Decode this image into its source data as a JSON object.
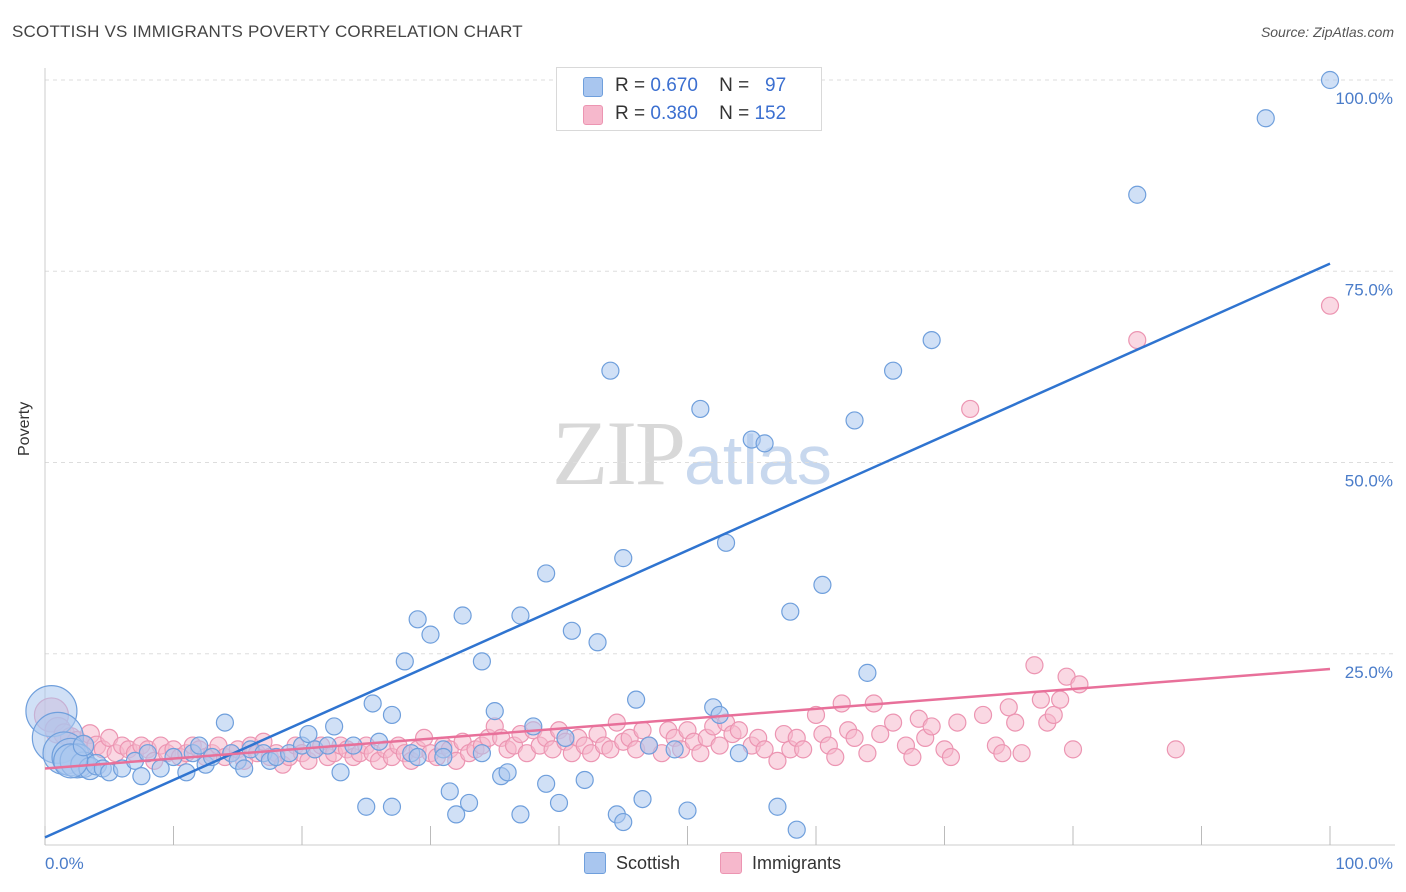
{
  "header": {
    "title": "SCOTTISH VS IMMIGRANTS POVERTY CORRELATION CHART",
    "source": "Source: ZipAtlas.com"
  },
  "watermark": {
    "zip": "ZIP",
    "atlas": "atlas"
  },
  "legend_top": {
    "rows": [
      {
        "r_label": "R =",
        "r_value": "0.670",
        "n_label": "N =",
        "n_value": "97"
      },
      {
        "r_label": "R =",
        "r_value": "0.380",
        "n_label": "N =",
        "n_value": "152"
      }
    ]
  },
  "legend_bottom": {
    "items": [
      "Scottish",
      "Immigrants"
    ]
  },
  "colors": {
    "scottish_fill": "#a9c6ef",
    "scottish_stroke": "#6f9fdc",
    "scottish_line": "#2f74d0",
    "immigrants_fill": "#f6b8cc",
    "immigrants_stroke": "#ec95b2",
    "immigrants_line": "#e8709a",
    "grid": "#dddddd",
    "axis_text": "#4a7cc9"
  },
  "chart_data": {
    "type": "scatter",
    "title": "SCOTTISH VS IMMIGRANTS POVERTY CORRELATION CHART",
    "xlabel": "",
    "ylabel": "Poverty",
    "xlim": [
      0,
      100
    ],
    "ylim": [
      0,
      100
    ],
    "x_tick_labels": [
      "0.0%",
      "100.0%"
    ],
    "y_tick_labels": [
      "25.0%",
      "50.0%",
      "75.0%",
      "100.0%"
    ],
    "y_ticks": [
      25,
      50,
      75,
      100
    ],
    "grid": true,
    "legend_position": "top-center",
    "series": [
      {
        "name": "Scottish",
        "R": 0.67,
        "N": 97,
        "trend": [
          [
            0,
            1.0
          ],
          [
            100,
            76.0
          ]
        ],
        "points": [
          [
            0.5,
            17.5,
            3
          ],
          [
            1,
            14,
            3
          ],
          [
            1.5,
            12,
            2.5
          ],
          [
            2,
            11.5,
            2.2
          ],
          [
            2.5,
            11,
            2
          ],
          [
            3,
            10.5,
            1.5
          ],
          [
            3.5,
            10,
            1.3
          ],
          [
            4,
            10.5,
            1.2
          ],
          [
            4.5,
            10,
            1
          ],
          [
            5,
            9.5,
            1
          ],
          [
            6,
            10,
            1
          ],
          [
            7,
            11,
            1
          ],
          [
            7.5,
            9,
            1
          ],
          [
            8,
            12,
            1
          ],
          [
            9,
            10,
            1
          ],
          [
            10,
            11.5,
            1
          ],
          [
            11,
            9.5,
            1
          ],
          [
            11.5,
            12,
            1
          ],
          [
            12,
            13,
            1
          ],
          [
            12.5,
            10.5,
            1
          ],
          [
            13,
            11.5,
            1
          ],
          [
            14,
            16,
            1
          ],
          [
            14.5,
            12,
            1
          ],
          [
            15,
            11,
            1
          ],
          [
            15.5,
            10,
            1
          ],
          [
            16,
            12.5,
            1
          ],
          [
            17,
            12,
            1
          ],
          [
            17.5,
            11,
            1
          ],
          [
            18,
            11.5,
            1
          ],
          [
            19,
            12,
            1
          ],
          [
            20,
            13,
            1
          ],
          [
            20.5,
            14.5,
            1
          ],
          [
            21,
            12.5,
            1
          ],
          [
            22,
            13,
            1
          ],
          [
            22.5,
            15.5,
            1
          ],
          [
            23,
            9.5,
            1
          ],
          [
            24,
            13,
            1
          ],
          [
            25,
            5,
            1
          ],
          [
            25.5,
            18.5,
            1
          ],
          [
            26,
            13.5,
            1
          ],
          [
            27,
            17,
            1
          ],
          [
            27,
            5,
            1
          ],
          [
            28,
            24,
            1
          ],
          [
            28.5,
            12,
            1
          ],
          [
            29,
            11.5,
            1
          ],
          [
            29,
            29.5,
            1
          ],
          [
            30,
            27.5,
            1
          ],
          [
            31,
            12.5,
            1
          ],
          [
            31,
            11.5,
            1
          ],
          [
            31.5,
            7,
            1
          ],
          [
            32,
            4,
            1
          ],
          [
            32.5,
            30,
            1
          ],
          [
            33,
            5.5,
            1
          ],
          [
            34,
            24,
            1
          ],
          [
            34,
            12,
            1
          ],
          [
            35,
            17.5,
            1
          ],
          [
            35.5,
            9,
            1
          ],
          [
            36,
            9.5,
            1
          ],
          [
            37,
            4,
            1
          ],
          [
            37,
            30,
            1
          ],
          [
            38,
            15.5,
            1
          ],
          [
            39,
            35.5,
            1
          ],
          [
            39,
            8,
            1
          ],
          [
            40,
            5.5,
            1
          ],
          [
            40.5,
            14,
            1
          ],
          [
            41,
            28,
            1
          ],
          [
            42,
            8.5,
            1
          ],
          [
            43,
            26.5,
            1
          ],
          [
            44,
            62,
            1
          ],
          [
            44.5,
            4,
            1
          ],
          [
            45,
            3,
            1
          ],
          [
            45,
            37.5,
            1
          ],
          [
            46,
            19,
            1
          ],
          [
            46.5,
            6,
            1
          ],
          [
            47,
            13,
            1
          ],
          [
            49,
            12.5,
            1
          ],
          [
            50,
            4.5,
            1
          ],
          [
            51,
            57,
            1
          ],
          [
            52,
            18,
            1
          ],
          [
            52.5,
            17,
            1
          ],
          [
            53,
            39.5,
            1
          ],
          [
            54,
            12,
            1
          ],
          [
            55,
            53,
            1
          ],
          [
            56,
            52.5,
            1
          ],
          [
            57,
            5,
            1
          ],
          [
            58,
            30.5,
            1
          ],
          [
            58.5,
            2,
            1
          ],
          [
            60.5,
            34,
            1
          ],
          [
            63,
            55.5,
            1
          ],
          [
            64,
            22.5,
            1
          ],
          [
            66,
            62,
            1
          ],
          [
            69,
            66,
            1
          ],
          [
            85,
            85,
            1
          ],
          [
            95,
            95,
            1
          ],
          [
            100,
            100,
            1
          ],
          [
            2,
            11,
            2
          ],
          [
            3,
            13,
            1.2
          ]
        ]
      },
      {
        "name": "Immigrants",
        "R": 0.38,
        "N": 152,
        "trend": [
          [
            0,
            10.0
          ],
          [
            100,
            23.0
          ]
        ],
        "points": [
          [
            0.5,
            17,
            2
          ],
          [
            1,
            15,
            1.5
          ],
          [
            1.5,
            14.5,
            1.2
          ],
          [
            2,
            14,
            1.2
          ],
          [
            2.5,
            13.5,
            1.2
          ],
          [
            3,
            13,
            1.1
          ],
          [
            3.5,
            14.5,
            1.1
          ],
          [
            4,
            13,
            1.1
          ],
          [
            4.5,
            12.5,
            1
          ],
          [
            5,
            14,
            1
          ],
          [
            5.5,
            12,
            1
          ],
          [
            6,
            13,
            1
          ],
          [
            6.5,
            12.5,
            1
          ],
          [
            7,
            12,
            1
          ],
          [
            7.5,
            13,
            1
          ],
          [
            8,
            12.5,
            1
          ],
          [
            8.5,
            11,
            1
          ],
          [
            9,
            13,
            1
          ],
          [
            9.5,
            12,
            1
          ],
          [
            10,
            12.5,
            1
          ],
          [
            10.5,
            11.5,
            1
          ],
          [
            11,
            12,
            1
          ],
          [
            11.5,
            13,
            1
          ],
          [
            12,
            12.5,
            1
          ],
          [
            12.5,
            11.5,
            1
          ],
          [
            13,
            12,
            1
          ],
          [
            13.5,
            13,
            1
          ],
          [
            14,
            11.5,
            1
          ],
          [
            14.5,
            12,
            1
          ],
          [
            15,
            12.5,
            1
          ],
          [
            15.5,
            11,
            1
          ],
          [
            16,
            13,
            1
          ],
          [
            16.5,
            12,
            1
          ],
          [
            17,
            13.5,
            1
          ],
          [
            17.5,
            11.5,
            1
          ],
          [
            18,
            12,
            1
          ],
          [
            18.5,
            10.5,
            1
          ],
          [
            19,
            11.5,
            1
          ],
          [
            19.5,
            13,
            1
          ],
          [
            20,
            12,
            1
          ],
          [
            20.5,
            11,
            1
          ],
          [
            21,
            12.5,
            1
          ],
          [
            21.5,
            13,
            1
          ],
          [
            22,
            11.5,
            1
          ],
          [
            22.5,
            12,
            1
          ],
          [
            23,
            13,
            1
          ],
          [
            23.5,
            12.5,
            1
          ],
          [
            24,
            11.5,
            1
          ],
          [
            24.5,
            12,
            1
          ],
          [
            25,
            13,
            1
          ],
          [
            25.5,
            12,
            1
          ],
          [
            26,
            11,
            1
          ],
          [
            26.5,
            12.5,
            1
          ],
          [
            27,
            11.5,
            1
          ],
          [
            27.5,
            13,
            1
          ],
          [
            28,
            12,
            1
          ],
          [
            28.5,
            11,
            1
          ],
          [
            29,
            12.5,
            1
          ],
          [
            29.5,
            14,
            1
          ],
          [
            30,
            12,
            1
          ],
          [
            30.5,
            11.5,
            1
          ],
          [
            31,
            13,
            1
          ],
          [
            31.5,
            12.5,
            1
          ],
          [
            32,
            11,
            1
          ],
          [
            32.5,
            13.5,
            1
          ],
          [
            33,
            12,
            1
          ],
          [
            33.5,
            12.5,
            1
          ],
          [
            34,
            13,
            1
          ],
          [
            34.5,
            14,
            1
          ],
          [
            35,
            15.5,
            1
          ],
          [
            35.5,
            14,
            1
          ],
          [
            36,
            12.5,
            1
          ],
          [
            36.5,
            13,
            1
          ],
          [
            37,
            14.5,
            1
          ],
          [
            37.5,
            12,
            1
          ],
          [
            38,
            15,
            1
          ],
          [
            38.5,
            13,
            1
          ],
          [
            39,
            14,
            1
          ],
          [
            39.5,
            12.5,
            1
          ],
          [
            40,
            15,
            1
          ],
          [
            40.5,
            13.5,
            1
          ],
          [
            41,
            12,
            1
          ],
          [
            41.5,
            14,
            1
          ],
          [
            42,
            13,
            1
          ],
          [
            42.5,
            12,
            1
          ],
          [
            43,
            14.5,
            1
          ],
          [
            43.5,
            13,
            1
          ],
          [
            44,
            12.5,
            1
          ],
          [
            44.5,
            16,
            1
          ],
          [
            45,
            13.5,
            1
          ],
          [
            45.5,
            14,
            1
          ],
          [
            46,
            12.5,
            1
          ],
          [
            46.5,
            15,
            1
          ],
          [
            47,
            13,
            1
          ],
          [
            48,
            12,
            1
          ],
          [
            48.5,
            15,
            1
          ],
          [
            49,
            14,
            1
          ],
          [
            49.5,
            12.5,
            1
          ],
          [
            50,
            15,
            1
          ],
          [
            50.5,
            13.5,
            1
          ],
          [
            51,
            12,
            1
          ],
          [
            51.5,
            14,
            1
          ],
          [
            52,
            15.5,
            1
          ],
          [
            52.5,
            13,
            1
          ],
          [
            53,
            16,
            1
          ],
          [
            53.5,
            14.5,
            1
          ],
          [
            54,
            15,
            1
          ],
          [
            55,
            13,
            1
          ],
          [
            55.5,
            14,
            1
          ],
          [
            56,
            12.5,
            1
          ],
          [
            57,
            11,
            1
          ],
          [
            57.5,
            14.5,
            1
          ],
          [
            58,
            12.5,
            1
          ],
          [
            58.5,
            14,
            1
          ],
          [
            59,
            12.5,
            1
          ],
          [
            60,
            17,
            1
          ],
          [
            60.5,
            14.5,
            1
          ],
          [
            61,
            13,
            1
          ],
          [
            61.5,
            11.5,
            1
          ],
          [
            62,
            18.5,
            1
          ],
          [
            62.5,
            15,
            1
          ],
          [
            63,
            14,
            1
          ],
          [
            64,
            12,
            1
          ],
          [
            64.5,
            18.5,
            1
          ],
          [
            65,
            14.5,
            1
          ],
          [
            66,
            16,
            1
          ],
          [
            67,
            13,
            1
          ],
          [
            67.5,
            11.5,
            1
          ],
          [
            68,
            16.5,
            1
          ],
          [
            68.5,
            14,
            1
          ],
          [
            69,
            15.5,
            1
          ],
          [
            70,
            12.5,
            1
          ],
          [
            70.5,
            11.5,
            1
          ],
          [
            71,
            16,
            1
          ],
          [
            72,
            57,
            1
          ],
          [
            73,
            17,
            1
          ],
          [
            74,
            13,
            1
          ],
          [
            74.5,
            12,
            1
          ],
          [
            75,
            18,
            1
          ],
          [
            75.5,
            16,
            1
          ],
          [
            76,
            12,
            1
          ],
          [
            77,
            23.5,
            1
          ],
          [
            77.5,
            19,
            1
          ],
          [
            78,
            16,
            1
          ],
          [
            78.5,
            17,
            1
          ],
          [
            79,
            19,
            1
          ],
          [
            79.5,
            22,
            1
          ],
          [
            80,
            12.5,
            1
          ],
          [
            80.5,
            21,
            1
          ],
          [
            85,
            66,
            1
          ],
          [
            88,
            12.5,
            1
          ],
          [
            100,
            70.5,
            1
          ]
        ]
      }
    ]
  }
}
